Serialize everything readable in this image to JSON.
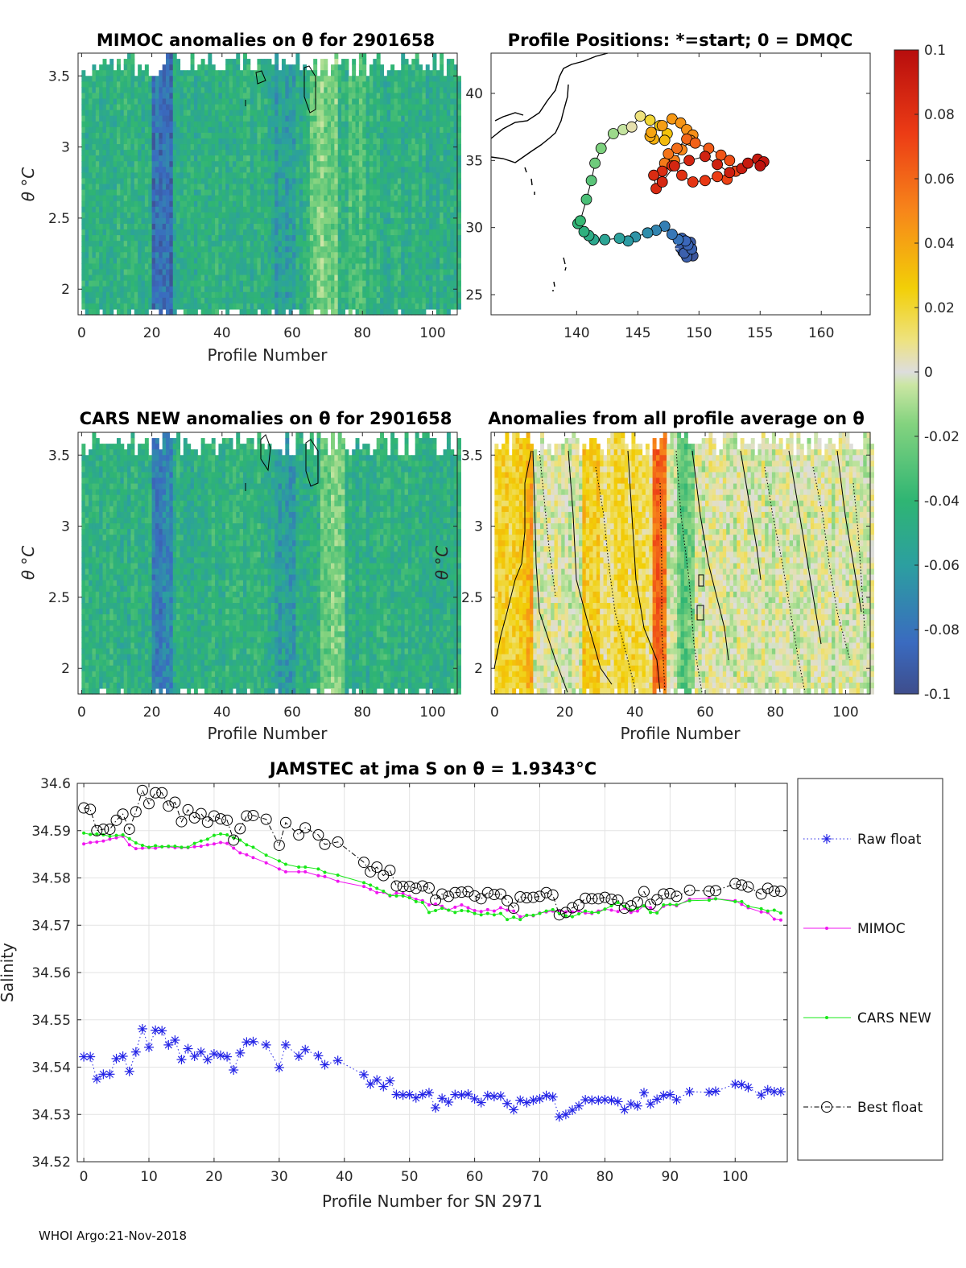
{
  "footer": "WHOI Argo:21-Nov-2018",
  "colors": {
    "raw": "#2323e6",
    "mimoc": "#f015f0",
    "cars": "#18e818",
    "best": "#000000",
    "contour": "#000000"
  },
  "colorbar": {
    "ticks": [
      "0.1",
      "0.08",
      "0.06",
      "0.04",
      "0.02",
      "0",
      "-0.02",
      "-0.04",
      "-0.06",
      "-0.08",
      "-0.1"
    ],
    "range": [
      -0.1,
      0.1
    ]
  },
  "chart_data": [
    {
      "id": "mimoc",
      "type": "heatmap",
      "title": "MIMOC anomalies on θ  for 2901658",
      "xlabel": "Profile Number",
      "ylabel": "θ °C",
      "xlim": [
        -1,
        107
      ],
      "ylim": [
        1.82,
        3.66
      ],
      "xticks": [
        "0",
        "20",
        "40",
        "60",
        "80",
        "100"
      ],
      "yticks": [
        "2",
        "2.5",
        "3",
        "3.5"
      ],
      "base_anomaly": -0.045,
      "features": [
        {
          "profiles": [
            20,
            25
          ],
          "anomaly": -0.08
        },
        {
          "profiles": [
            55,
            60
          ],
          "anomaly": -0.06
        },
        {
          "profiles": [
            65,
            72
          ],
          "anomaly": -0.02
        },
        {
          "profiles": [
            76,
            80
          ],
          "anomaly": -0.03
        }
      ]
    },
    {
      "id": "positions",
      "type": "scatter",
      "title": "Profile Positions: *=start; 0 = DMQC",
      "xlim": [
        133,
        164
      ],
      "ylim": [
        23.5,
        43
      ],
      "xticks": [
        "140",
        "145",
        "150",
        "155",
        "160"
      ],
      "yticks": [
        "25",
        "30",
        "35",
        "40"
      ],
      "lon": [
        149.5,
        149.2,
        148.9,
        149.1,
        148.7,
        149.3,
        148.5,
        149.0,
        148.8,
        149.4,
        148.6,
        149.1,
        148.9,
        148.3,
        147.8,
        147.2,
        146.5,
        145.8,
        144.8,
        144.2,
        143.5,
        142.3,
        141.4,
        141.0,
        140.6,
        140.1,
        140.3,
        140.8,
        141.2,
        141.5,
        142.0,
        143.0,
        143.8,
        144.5,
        145.2,
        146.0,
        146.8,
        147.4,
        147.2,
        146.3,
        146.0,
        146.1,
        147.0,
        147.8,
        148.5,
        149.0,
        149.5,
        149.3,
        148.6,
        148.0,
        147.2,
        147.5,
        148.2,
        149.0,
        149.7,
        150.8,
        151.8,
        152.5,
        153.0,
        152.3,
        151.5,
        150.5,
        149.5,
        148.6,
        147.8,
        147.0,
        146.3,
        146.5,
        147.0,
        148.0,
        149.2,
        150.5,
        151.5,
        152.5,
        153.5,
        154.0,
        154.8,
        155.3,
        155.0
      ],
      "lat": [
        27.9,
        28.3,
        28.8,
        28.6,
        28.2,
        28.9,
        28.5,
        27.8,
        28.1,
        28.4,
        29.2,
        28.7,
        29.0,
        29.1,
        29.5,
        30.1,
        29.8,
        29.6,
        29.3,
        29.0,
        29.2,
        29.1,
        29.1,
        29.4,
        29.7,
        30.3,
        30.5,
        32.1,
        33.5,
        34.8,
        35.9,
        37.0,
        37.3,
        37.5,
        38.3,
        38.0,
        37.6,
        37.0,
        36.5,
        36.6,
        36.8,
        37.1,
        37.6,
        38.1,
        37.8,
        37.3,
        36.9,
        36.5,
        35.8,
        35.0,
        34.8,
        35.5,
        35.9,
        36.6,
        36.3,
        35.9,
        35.4,
        35.0,
        34.2,
        33.6,
        33.8,
        33.5,
        33.4,
        33.9,
        34.6,
        34.2,
        33.9,
        32.9,
        33.4,
        34.6,
        35.0,
        35.3,
        34.7,
        34.1,
        34.4,
        34.8,
        35.1,
        34.9,
        34.6
      ],
      "value": [
        -0.095,
        -0.094,
        -0.093,
        -0.093,
        -0.092,
        -0.092,
        -0.091,
        -0.09,
        -0.09,
        -0.089,
        -0.088,
        -0.087,
        -0.086,
        -0.08,
        -0.078,
        -0.075,
        -0.072,
        -0.068,
        -0.065,
        -0.062,
        -0.058,
        -0.055,
        -0.052,
        -0.048,
        -0.045,
        -0.042,
        -0.038,
        -0.032,
        -0.028,
        -0.022,
        -0.018,
        -0.012,
        -0.005,
        0.005,
        0.01,
        0.02,
        0.025,
        0.03,
        0.033,
        0.036,
        0.038,
        0.04,
        0.042,
        0.044,
        0.045,
        0.046,
        0.047,
        0.048,
        0.05,
        0.052,
        0.054,
        0.056,
        0.058,
        0.06,
        0.062,
        0.064,
        0.066,
        0.068,
        0.07,
        0.072,
        0.074,
        0.076,
        0.078,
        0.08,
        0.081,
        0.082,
        0.083,
        0.084,
        0.085,
        0.086,
        0.087,
        0.088,
        0.089,
        0.09,
        0.091,
        0.092,
        0.093,
        0.095,
        0.097
      ]
    },
    {
      "id": "cars",
      "type": "heatmap",
      "title": "CARS NEW anomalies on θ for 2901658",
      "xlabel": "Profile Number",
      "ylabel": "θ °C",
      "xlim": [
        -1,
        107
      ],
      "ylim": [
        1.82,
        3.66
      ],
      "xticks": [
        "0",
        "20",
        "40",
        "60",
        "80",
        "100"
      ],
      "yticks": [
        "2",
        "2.5",
        "3",
        "3.5"
      ],
      "base_anomaly": -0.045,
      "features": [
        {
          "profiles": [
            20,
            25
          ],
          "anomaly": -0.075
        },
        {
          "profiles": [
            55,
            60
          ],
          "anomaly": -0.06
        },
        {
          "profiles": [
            68,
            74
          ],
          "anomaly": -0.02
        }
      ]
    },
    {
      "id": "allavg",
      "type": "heatmap",
      "title": "Anomalies from all profile average on θ",
      "xlabel": "Profile Number",
      "ylabel": "θ °C",
      "xlim": [
        -1,
        107
      ],
      "ylim": [
        1.82,
        3.66
      ],
      "xticks": [
        "0",
        "20",
        "40",
        "60",
        "80",
        "100"
      ],
      "yticks": [
        "2",
        "2.5",
        "3",
        "3.5"
      ],
      "base_anomaly": 0.0,
      "features": [
        {
          "profiles": [
            0,
            8
          ],
          "anomaly": 0.022
        },
        {
          "profiles": [
            9,
            10
          ],
          "anomaly": 0.04
        },
        {
          "profiles": [
            25,
            30
          ],
          "anomaly": 0.025
        },
        {
          "profiles": [
            30,
            45
          ],
          "anomaly": 0.015
        },
        {
          "profiles": [
            45,
            48
          ],
          "anomaly": 0.06
        },
        {
          "profiles": [
            52,
            56
          ],
          "anomaly": -0.025
        }
      ]
    },
    {
      "id": "salinity",
      "type": "line",
      "title": "JAMSTEC at jma S on θ = 1.9343°C",
      "xlabel": "Profile Number for SN 2971",
      "ylabel": "Salinity",
      "xlim": [
        -1,
        108
      ],
      "ylim": [
        34.52,
        34.6
      ],
      "xticks": [
        "0",
        "10",
        "20",
        "30",
        "40",
        "50",
        "60",
        "70",
        "80",
        "90",
        "100"
      ],
      "yticks": [
        "34.52",
        "34.53",
        "34.54",
        "34.55",
        "34.56",
        "34.57",
        "34.58",
        "34.59",
        "34.6"
      ],
      "legend": [
        "Raw float",
        "MIMOC",
        "CARS NEW",
        "Best float"
      ],
      "x": [
        0,
        1,
        2,
        3,
        4,
        5,
        6,
        7,
        8,
        9,
        10,
        11,
        12,
        13,
        14,
        15,
        16,
        17,
        18,
        19,
        20,
        21,
        22,
        23,
        24,
        25,
        26,
        28,
        30,
        31,
        33,
        34,
        36,
        37,
        39,
        43,
        44,
        45,
        46,
        47,
        48,
        49,
        50,
        51,
        52,
        53,
        54,
        55,
        56,
        57,
        58,
        59,
        60,
        61,
        62,
        63,
        64,
        65,
        66,
        67,
        68,
        69,
        70,
        71,
        72,
        73,
        74,
        75,
        76,
        77,
        78,
        79,
        80,
        81,
        82,
        83,
        84,
        85,
        86,
        87,
        88,
        89,
        90,
        91,
        93,
        96,
        97,
        100,
        101,
        102,
        104,
        105,
        106,
        107
      ],
      "series": [
        {
          "name": "Raw float",
          "values": [
            34.5422,
            34.5422,
            34.5375,
            34.5385,
            34.5385,
            34.5418,
            34.5423,
            34.5391,
            34.5432,
            34.5481,
            34.5442,
            34.5478,
            34.5477,
            34.5447,
            34.5457,
            34.5416,
            34.5439,
            34.5423,
            34.5432,
            34.5416,
            34.5428,
            34.5425,
            34.5422,
            34.5394,
            34.543,
            34.5453,
            34.5454,
            34.5447,
            34.5399,
            34.5447,
            34.5423,
            34.5437,
            34.5424,
            34.5405,
            34.5414,
            34.5384,
            34.5364,
            34.5373,
            34.5359,
            34.5371,
            34.5342,
            34.5341,
            34.5342,
            34.5335,
            34.5342,
            34.5346,
            34.5314,
            34.5334,
            34.5326,
            34.5342,
            34.5341,
            34.5343,
            34.5333,
            34.5325,
            34.534,
            34.5338,
            34.5339,
            34.5323,
            34.531,
            34.533,
            34.5325,
            34.533,
            34.5333,
            34.534,
            34.5337,
            34.5295,
            34.53,
            34.5309,
            34.5318,
            34.5331,
            34.533,
            34.533,
            34.5331,
            34.533,
            34.5327,
            34.531,
            34.5322,
            34.5318,
            34.5346,
            34.5322,
            34.5332,
            34.534,
            34.5342,
            34.5331,
            34.5348,
            34.5347,
            34.5349,
            34.5364,
            34.5363,
            34.5357,
            34.5341,
            34.5352,
            34.5348,
            34.5348
          ]
        },
        {
          "name": "MIMOC",
          "values": [
            34.5872,
            34.5875,
            34.5876,
            34.5878,
            34.5882,
            34.5885,
            34.5888,
            34.587,
            34.5862,
            34.5863,
            34.5864,
            34.5863,
            34.5866,
            34.5866,
            34.5864,
            34.5864,
            34.5864,
            34.5866,
            34.5867,
            34.587,
            34.5872,
            34.5875,
            34.5873,
            34.5863,
            34.5853,
            34.5849,
            34.5843,
            34.5832,
            34.5819,
            34.5813,
            34.5813,
            34.5813,
            34.5805,
            34.5803,
            34.5793,
            34.5782,
            34.5776,
            34.5769,
            34.577,
            34.5762,
            34.5768,
            34.5767,
            34.5761,
            34.5755,
            34.5752,
            34.5743,
            34.5745,
            34.574,
            34.5732,
            34.5738,
            34.5743,
            34.5737,
            34.5731,
            34.5729,
            34.5733,
            34.573,
            34.5737,
            34.5732,
            34.573,
            34.5718,
            34.5721,
            34.572,
            34.5726,
            34.5728,
            34.573,
            34.573,
            34.5728,
            34.5728,
            34.573,
            34.5726,
            34.5725,
            34.573,
            34.5734,
            34.5732,
            34.5729,
            34.5736,
            34.5727,
            34.573,
            34.5741,
            34.5737,
            34.5727,
            34.574,
            34.5744,
            34.5741,
            34.5755,
            34.5757,
            34.5756,
            34.5752,
            34.5744,
            34.5737,
            34.5728,
            34.5727,
            34.5713,
            34.5711
          ]
        },
        {
          "name": "CARS NEW",
          "values": [
            34.5895,
            34.5892,
            34.5893,
            34.5891,
            34.5888,
            34.589,
            34.5891,
            34.5883,
            34.5874,
            34.5869,
            34.5865,
            34.5868,
            34.5866,
            34.5867,
            34.5867,
            34.5865,
            34.5865,
            34.5873,
            34.5878,
            34.5882,
            34.589,
            34.5893,
            34.5891,
            34.5885,
            34.588,
            34.587,
            34.5865,
            34.5848,
            34.5836,
            34.5829,
            34.5823,
            34.5823,
            34.5819,
            34.5812,
            34.5806,
            34.579,
            34.5785,
            34.5778,
            34.5772,
            34.5763,
            34.5762,
            34.5762,
            34.5758,
            34.575,
            34.5748,
            34.5727,
            34.5731,
            34.5736,
            34.5732,
            34.5727,
            34.5731,
            34.573,
            34.5725,
            34.5722,
            34.5725,
            34.5722,
            34.5725,
            34.5712,
            34.5717,
            34.5712,
            34.5721,
            34.5721,
            34.5725,
            34.573,
            34.5733,
            34.5725,
            34.572,
            34.5718,
            34.5724,
            34.573,
            34.5727,
            34.5727,
            34.5734,
            34.5741,
            34.5748,
            34.574,
            34.5732,
            34.5736,
            34.5741,
            34.5727,
            34.5726,
            34.5743,
            34.5744,
            34.5743,
            34.5752,
            34.5753,
            34.5756,
            34.575,
            34.575,
            34.574,
            34.5735,
            34.573,
            34.5732,
            34.5726
          ]
        },
        {
          "name": "Best float",
          "values": [
            34.5948,
            34.5945,
            34.59,
            34.5903,
            34.5903,
            34.5922,
            34.5935,
            34.5903,
            34.594,
            34.5985,
            34.5957,
            34.598,
            34.598,
            34.5952,
            34.596,
            34.5919,
            34.5944,
            34.5927,
            34.5936,
            34.5918,
            34.5931,
            34.5925,
            34.5922,
            34.588,
            34.5904,
            34.5931,
            34.5932,
            34.5924,
            34.5869,
            34.5917,
            34.5891,
            34.5906,
            34.5891,
            34.5871,
            34.5876,
            34.5833,
            34.5813,
            34.5823,
            34.5805,
            34.5816,
            34.5783,
            34.5782,
            34.5782,
            34.5778,
            34.5783,
            34.5779,
            34.5753,
            34.5766,
            34.5761,
            34.5769,
            34.577,
            34.5771,
            34.5762,
            34.5756,
            34.5769,
            34.5765,
            34.5766,
            34.5752,
            34.5736,
            34.576,
            34.5758,
            34.5759,
            34.5761,
            34.5769,
            34.5764,
            34.5722,
            34.5727,
            34.5737,
            34.5743,
            34.5757,
            34.5756,
            34.5756,
            34.5759,
            34.5755,
            34.5753,
            34.5736,
            34.5741,
            34.5749,
            34.5771,
            34.5744,
            34.5754,
            34.5766,
            34.5767,
            34.5761,
            34.5774,
            34.5772,
            34.5773,
            34.5788,
            34.5785,
            34.5781,
            34.5766,
            34.5778,
            34.5772,
            34.5772
          ]
        }
      ]
    }
  ]
}
